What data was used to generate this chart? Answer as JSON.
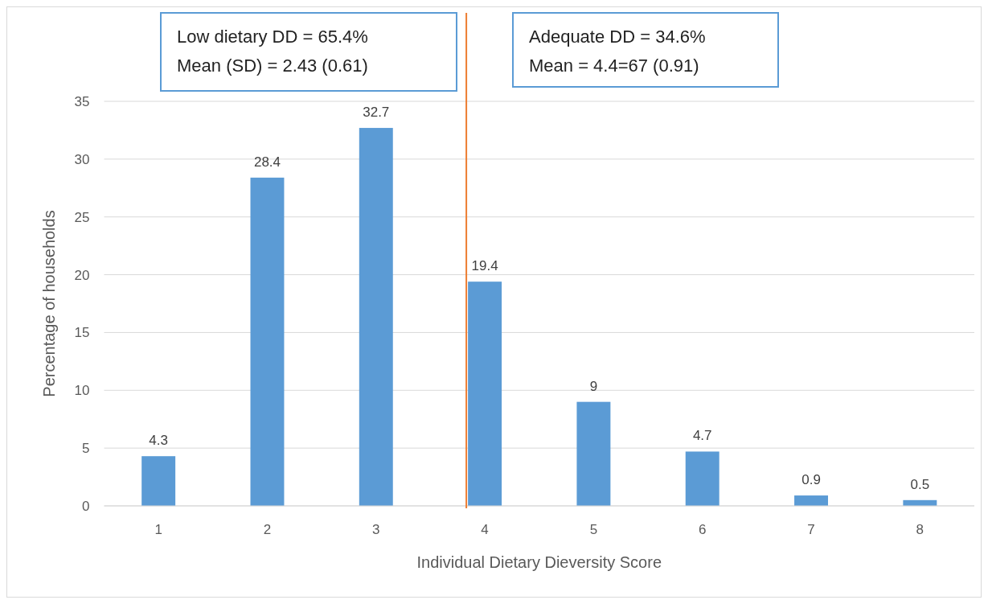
{
  "chart_data": {
    "type": "bar",
    "x": [
      1,
      2,
      3,
      4,
      5,
      6,
      7,
      8
    ],
    "xlim": [
      0.5,
      8.5
    ],
    "xticks": [
      1,
      2,
      3,
      4,
      5,
      6,
      7,
      8
    ],
    "values": [
      4.3,
      28.4,
      32.7,
      19.4,
      9,
      4.7,
      0.9,
      0.5
    ],
    "color": "#5b9bd5",
    "data_labels": true,
    "ylim": [
      0,
      35
    ],
    "yticks": [
      0,
      5,
      10,
      15,
      20,
      25,
      30,
      35
    ],
    "grid": "y",
    "xlabel": "Individual Dietary Dieversity Score",
    "ylabel": "Percentage of households",
    "ref_lines": [
      {
        "axis": "x",
        "value": 3.83,
        "color": "#ed7d31"
      }
    ],
    "annotations": [
      "Low dietary DD = 65.4%\nMean (SD) = 2.43 (0.61)",
      "Adequate DD = 34.6%\nMean = 4.4=67 (0.91)"
    ]
  }
}
